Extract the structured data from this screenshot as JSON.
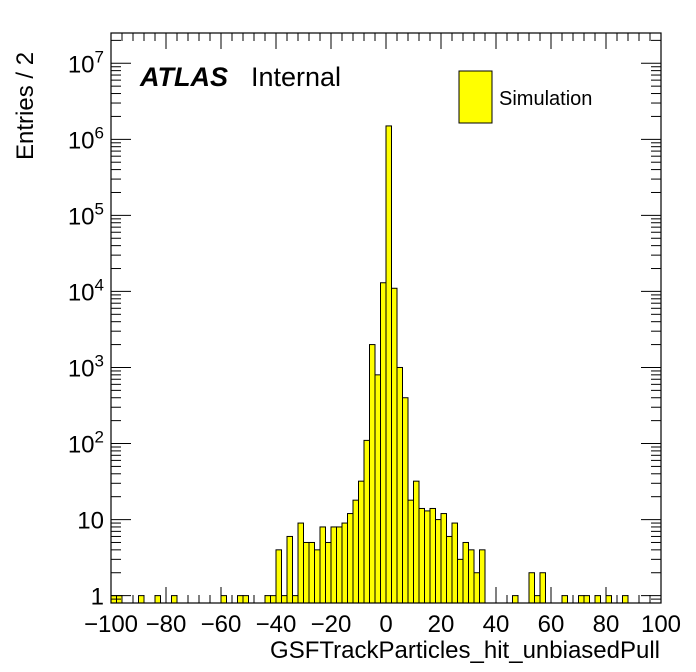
{
  "chart_data": {
    "type": "bar",
    "xlabel": "GSFTrackParticles_hit_unbiasedPull",
    "ylabel": "Entries / 2",
    "label_bold": "ATLAS",
    "label_suffix": "Internal",
    "legend": [
      {
        "name": "Simulation",
        "color": "#ffff00"
      }
    ],
    "fill_color": "#ffff00",
    "edge_color": "#000000",
    "xlim": [
      -100,
      100
    ],
    "ylim": [
      0.8,
      25000000
    ],
    "yscale": "log",
    "grid": false,
    "legend_position": "top-right",
    "bin_width": 2,
    "x_ticks": [
      "−100",
      "−80",
      "−60",
      "−40",
      "−20",
      "0",
      "20",
      "40",
      "60",
      "80",
      "100"
    ],
    "x_tick_values": [
      -100,
      -80,
      -60,
      -40,
      -20,
      0,
      20,
      40,
      60,
      80,
      100
    ],
    "y_ticks": [
      {
        "value": 1,
        "base": "1",
        "exp": ""
      },
      {
        "value": 10,
        "base": "10",
        "exp": ""
      },
      {
        "value": 100,
        "base": "10",
        "exp": "2"
      },
      {
        "value": 1000,
        "base": "10",
        "exp": "3"
      },
      {
        "value": 10000,
        "base": "10",
        "exp": "4"
      },
      {
        "value": 100000,
        "base": "10",
        "exp": "5"
      },
      {
        "value": 1000000,
        "base": "10",
        "exp": "6"
      },
      {
        "value": 10000000,
        "base": "10",
        "exp": "7"
      }
    ],
    "bins": [
      {
        "x": -100,
        "y": 1
      },
      {
        "x": -98,
        "y": 1
      },
      {
        "x": -90,
        "y": 1
      },
      {
        "x": -84,
        "y": 1
      },
      {
        "x": -78,
        "y": 1
      },
      {
        "x": -60,
        "y": 1
      },
      {
        "x": -54,
        "y": 1
      },
      {
        "x": -52,
        "y": 1
      },
      {
        "x": -44,
        "y": 1
      },
      {
        "x": -42,
        "y": 1
      },
      {
        "x": -40,
        "y": 4
      },
      {
        "x": -38,
        "y": 1
      },
      {
        "x": -36,
        "y": 6
      },
      {
        "x": -34,
        "y": 1
      },
      {
        "x": -32,
        "y": 9
      },
      {
        "x": -30,
        "y": 5
      },
      {
        "x": -28,
        "y": 5
      },
      {
        "x": -26,
        "y": 4
      },
      {
        "x": -24,
        "y": 8
      },
      {
        "x": -22,
        "y": 5
      },
      {
        "x": -20,
        "y": 8
      },
      {
        "x": -18,
        "y": 8
      },
      {
        "x": -16,
        "y": 9
      },
      {
        "x": -14,
        "y": 12
      },
      {
        "x": -12,
        "y": 18
      },
      {
        "x": -10,
        "y": 32
      },
      {
        "x": -8,
        "y": 110
      },
      {
        "x": -6,
        "y": 2000
      },
      {
        "x": -4,
        "y": 800
      },
      {
        "x": -2,
        "y": 13000
      },
      {
        "x": 0,
        "y": 1500000
      },
      {
        "x": 2,
        "y": 11000
      },
      {
        "x": 4,
        "y": 1000
      },
      {
        "x": 6,
        "y": 400
      },
      {
        "x": 8,
        "y": 18
      },
      {
        "x": 10,
        "y": 32
      },
      {
        "x": 12,
        "y": 14
      },
      {
        "x": 14,
        "y": 13
      },
      {
        "x": 16,
        "y": 14
      },
      {
        "x": 18,
        "y": 10
      },
      {
        "x": 20,
        "y": 12
      },
      {
        "x": 22,
        "y": 6
      },
      {
        "x": 24,
        "y": 9
      },
      {
        "x": 26,
        "y": 3
      },
      {
        "x": 28,
        "y": 5
      },
      {
        "x": 30,
        "y": 4
      },
      {
        "x": 32,
        "y": 2
      },
      {
        "x": 34,
        "y": 4
      },
      {
        "x": 46,
        "y": 1
      },
      {
        "x": 52,
        "y": 2
      },
      {
        "x": 54,
        "y": 1
      },
      {
        "x": 56,
        "y": 2
      },
      {
        "x": 64,
        "y": 1
      },
      {
        "x": 70,
        "y": 1
      },
      {
        "x": 72,
        "y": 1
      },
      {
        "x": 76,
        "y": 1
      },
      {
        "x": 80,
        "y": 1
      },
      {
        "x": 86,
        "y": 1
      }
    ]
  }
}
